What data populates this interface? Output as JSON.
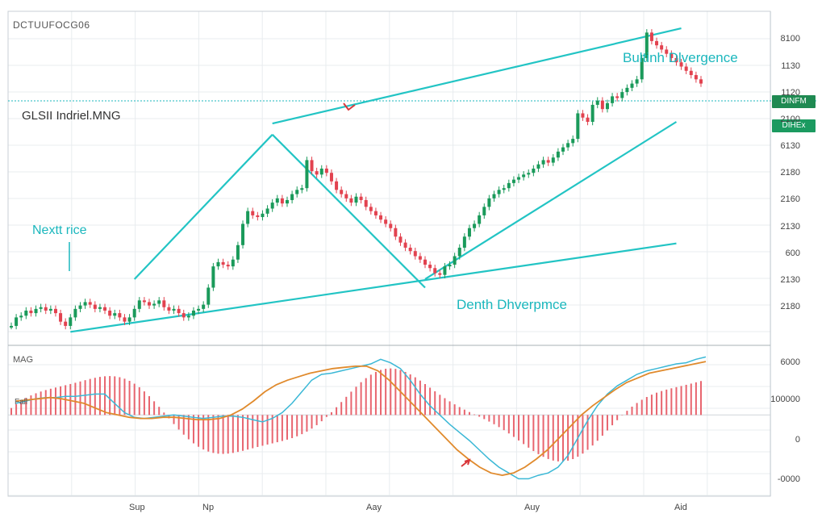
{
  "ticker": "DCTUUFOCG06",
  "title": "GLSII Indriel.MNG",
  "annotations": {
    "bullish": "Bultinh Dlvergence",
    "bearish": "Denth Dhverpmce",
    "next": "Nextt rice"
  },
  "macd_label": "MAG",
  "macd_mini_label": "Fall",
  "price_axis_labels": [
    "8100",
    "1130",
    "1120",
    "2100",
    "6130",
    "2180",
    "2160",
    "2130",
    "600",
    "2130",
    "2180"
  ],
  "price_badges": [
    "DINFM",
    "DIHEx"
  ],
  "macd_axis_labels": [
    "6000",
    "100000",
    "0",
    "-0000"
  ],
  "x_labels": [
    "Sup",
    "Np",
    "Aay",
    "Auy",
    "Aid"
  ],
  "colors": {
    "up": "#1a9a5a",
    "down": "#e2424f",
    "trend": "#22c4c4",
    "signal": "#e08a2c",
    "macd": "#3bb8d6",
    "hist": "#e8656f"
  },
  "chart_data": {
    "type": "candlestick",
    "x_index": [
      0,
      1,
      2,
      3,
      4,
      5,
      6,
      7,
      8,
      9,
      10,
      11,
      12,
      13,
      14,
      15,
      16,
      17,
      18,
      19,
      20,
      21,
      22,
      23,
      24,
      25,
      26,
      27,
      28,
      29,
      30,
      31,
      32,
      33,
      34,
      35,
      36,
      37,
      38,
      39,
      40,
      41,
      42,
      43,
      44,
      45,
      46,
      47,
      48,
      49,
      50,
      51,
      52,
      53,
      54,
      55,
      56,
      57,
      58,
      59,
      60,
      61,
      62,
      63,
      64,
      65,
      66,
      67,
      68,
      69,
      70,
      71,
      72,
      73,
      74,
      75,
      76,
      77,
      78,
      79,
      80,
      81,
      82,
      83,
      84,
      85,
      86,
      87,
      88,
      89,
      90,
      91,
      92,
      93,
      94,
      95,
      96,
      97,
      98,
      99,
      100,
      101,
      102,
      103,
      104,
      105,
      106,
      107,
      108,
      109,
      110,
      111,
      112,
      113,
      114,
      115,
      116,
      117,
      118,
      119,
      120,
      121,
      122,
      123,
      124,
      125,
      126,
      127,
      128,
      129,
      130,
      131,
      132,
      133,
      134,
      135,
      136,
      137,
      138,
      139,
      140
    ],
    "close": [
      2.0,
      2.1,
      2.12,
      2.18,
      2.15,
      2.2,
      2.22,
      2.18,
      2.2,
      2.15,
      2.05,
      2.0,
      2.1,
      2.2,
      2.24,
      2.28,
      2.25,
      2.2,
      2.22,
      2.18,
      2.12,
      2.15,
      2.1,
      2.05,
      2.1,
      2.2,
      2.3,
      2.28,
      2.24,
      2.26,
      2.3,
      2.22,
      2.18,
      2.2,
      2.15,
      2.1,
      2.12,
      2.18,
      2.2,
      2.25,
      2.45,
      2.7,
      2.75,
      2.72,
      2.7,
      2.78,
      2.95,
      3.2,
      3.35,
      3.3,
      3.28,
      3.32,
      3.38,
      3.45,
      3.5,
      3.44,
      3.48,
      3.55,
      3.6,
      3.62,
      3.95,
      3.82,
      3.78,
      3.85,
      3.8,
      3.7,
      3.6,
      3.55,
      3.5,
      3.45,
      3.52,
      3.48,
      3.4,
      3.35,
      3.3,
      3.25,
      3.2,
      3.15,
      3.05,
      2.98,
      2.92,
      2.88,
      2.82,
      2.78,
      2.72,
      2.68,
      2.62,
      2.6,
      2.7,
      2.72,
      2.82,
      2.92,
      3.05,
      3.15,
      3.2,
      3.3,
      3.4,
      3.5,
      3.55,
      3.6,
      3.62,
      3.68,
      3.72,
      3.75,
      3.78,
      3.8,
      3.85,
      3.9,
      3.95,
      3.92,
      3.98,
      4.05,
      4.1,
      4.15,
      4.2,
      4.5,
      4.45,
      4.4,
      4.6,
      4.65,
      4.55,
      4.62,
      4.7,
      4.68,
      4.75,
      4.8,
      4.85,
      4.9,
      5.15,
      5.45,
      5.35,
      5.3,
      5.25,
      5.2,
      5.15,
      5.1,
      5.05,
      5.0,
      4.95,
      4.9,
      4.85
    ],
    "macd": [
      0.1,
      0.12,
      0.14,
      0.15,
      0.15,
      0.16,
      0.16,
      0.17,
      0.18,
      0.18,
      0.1,
      0.02,
      -0.02,
      -0.03,
      -0.02,
      -0.01,
      0.0,
      -0.01,
      -0.02,
      -0.03,
      -0.02,
      -0.01,
      -0.01,
      -0.02,
      -0.04,
      -0.06,
      -0.03,
      0.02,
      0.1,
      0.2,
      0.3,
      0.35,
      0.36,
      0.38,
      0.4,
      0.42,
      0.44,
      0.48,
      0.45,
      0.4,
      0.3,
      0.18,
      0.08,
      0.0,
      -0.08,
      -0.15,
      -0.22,
      -0.3,
      -0.38,
      -0.45,
      -0.5,
      -0.55,
      -0.55,
      -0.52,
      -0.5,
      -0.45,
      -0.35,
      -0.2,
      -0.05,
      0.08,
      0.18,
      0.25,
      0.3,
      0.35,
      0.38,
      0.4,
      0.42,
      0.44,
      0.45,
      0.48,
      0.5
    ],
    "signal": [
      0.12,
      0.13,
      0.14,
      0.15,
      0.14,
      0.12,
      0.1,
      0.06,
      0.02,
      0.0,
      -0.02,
      -0.03,
      -0.03,
      -0.02,
      -0.02,
      -0.03,
      -0.04,
      -0.04,
      -0.03,
      0.0,
      0.05,
      0.12,
      0.2,
      0.26,
      0.3,
      0.33,
      0.36,
      0.38,
      0.4,
      0.41,
      0.42,
      0.42,
      0.38,
      0.3,
      0.2,
      0.1,
      0.0,
      -0.1,
      -0.2,
      -0.3,
      -0.38,
      -0.45,
      -0.5,
      -0.52,
      -0.5,
      -0.45,
      -0.38,
      -0.3,
      -0.2,
      -0.1,
      0.0,
      0.08,
      0.15,
      0.22,
      0.28,
      0.32,
      0.36,
      0.38,
      0.4,
      0.42,
      0.44,
      0.46
    ],
    "ylim": [
      1.8,
      5.7
    ],
    "macd_ylim": [
      -0.7,
      0.6
    ]
  }
}
